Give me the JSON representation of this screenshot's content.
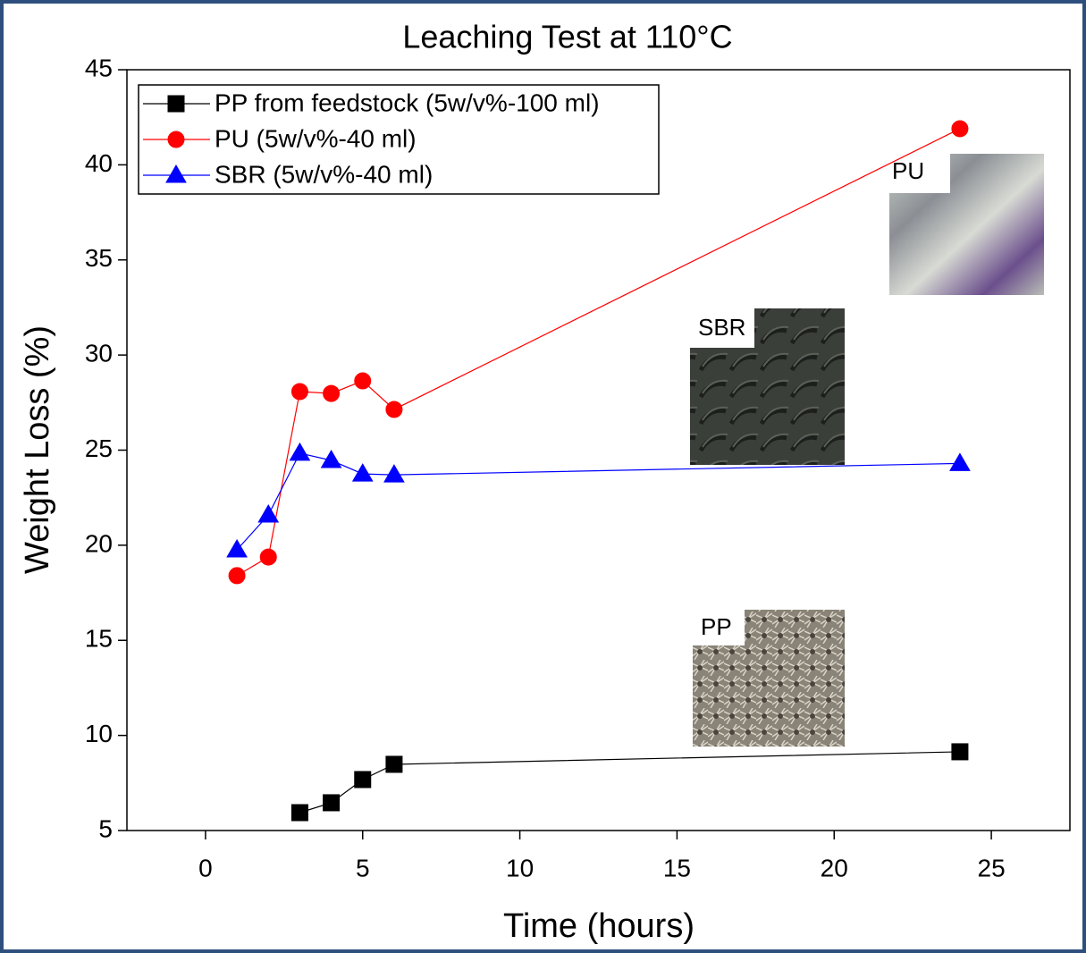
{
  "chart_data": {
    "type": "line",
    "title": "Leaching Test at 110°C",
    "x_label": "Time (hours)",
    "y_label": "Weight Loss (%)",
    "xlim": [
      -2.5,
      27.5
    ],
    "xticks": [
      0,
      5,
      10,
      15,
      20,
      25
    ],
    "ylim": [
      5,
      45
    ],
    "yticks": [
      5,
      10,
      15,
      20,
      25,
      30,
      35,
      40,
      45
    ],
    "legend": "upper left",
    "series": [
      {
        "name": "PP from feedstock (5w/v%-100 ml)",
        "color": "#000000",
        "marker": "square",
        "x": [
          3,
          4,
          5,
          6,
          24
        ],
        "values": [
          5.94,
          6.46,
          7.68,
          8.48,
          9.14
        ]
      },
      {
        "name": "PU (5w/v%-40 ml)",
        "color": "#ff0000",
        "marker": "circle",
        "x": [
          1,
          2,
          3,
          4,
          5,
          6,
          24
        ],
        "values": [
          18.4,
          19.38,
          28.08,
          27.98,
          28.64,
          27.14,
          41.9
        ]
      },
      {
        "name": "SBR (5w/v%-40 ml)",
        "color": "#0000ff",
        "marker": "triangle",
        "x": [
          1,
          2,
          3,
          4,
          5,
          6,
          24
        ],
        "values": [
          19.76,
          21.59,
          24.84,
          24.46,
          23.75,
          23.7,
          24.3
        ]
      }
    ],
    "annotations": [
      "PU",
      "SBR",
      "PP"
    ]
  }
}
